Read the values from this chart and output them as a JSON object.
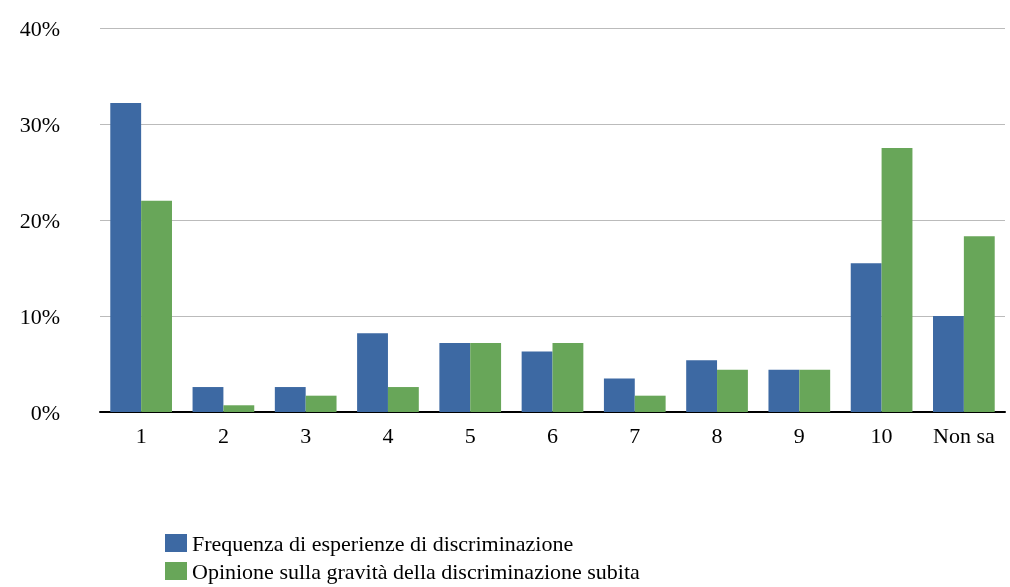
{
  "chart_data": {
    "type": "bar",
    "categories": [
      "1",
      "2",
      "3",
      "4",
      "5",
      "6",
      "7",
      "8",
      "9",
      "10",
      "Non sa"
    ],
    "series": [
      {
        "name": "Frequenza di esperienze di discriminazione",
        "color": "#3d69a3",
        "values": [
          32.2,
          2.6,
          2.6,
          8.2,
          7.2,
          6.3,
          3.5,
          5.4,
          4.4,
          15.5,
          10.0
        ]
      },
      {
        "name": "Opinione sulla gravità della discriminazione subita",
        "color": "#68a659",
        "values": [
          22.0,
          0.7,
          1.7,
          2.6,
          7.2,
          7.2,
          1.7,
          4.4,
          4.4,
          27.5,
          18.3
        ]
      }
    ],
    "ylim": [
      0,
      40
    ],
    "yticks": [
      {
        "value": 0,
        "label": "0%"
      },
      {
        "value": 10,
        "label": "10%"
      },
      {
        "value": 20,
        "label": "20%"
      },
      {
        "value": 30,
        "label": "30%"
      },
      {
        "value": 40,
        "label": "40%"
      }
    ],
    "grid": "y",
    "legend": "bottom"
  }
}
